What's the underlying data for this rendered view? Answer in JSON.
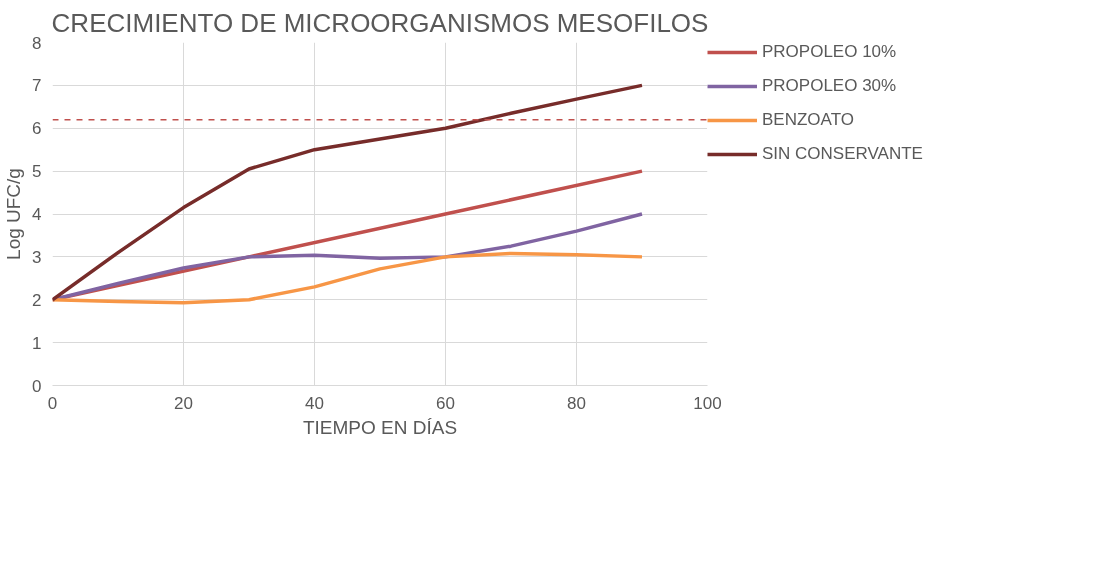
{
  "chart_data": {
    "type": "line",
    "title": "CRECIMIENTO DE MICROORGANISMOS MESOFILOS",
    "xlabel": "TIEMPO EN DÍAS",
    "ylabel": "Log UFC/g",
    "series": [
      {
        "name": "PROPOLEO 10%",
        "color": "#c0504d",
        "x": [
          0,
          30,
          60,
          90
        ],
        "values": [
          2,
          3,
          4,
          5
        ]
      },
      {
        "name": "PROPOLEO 30%",
        "color": "#8064a2",
        "x": [
          0,
          10,
          20,
          30,
          40,
          50,
          60,
          70,
          80,
          90
        ],
        "values": [
          2,
          2.38,
          2.74,
          3.0,
          3.04,
          2.97,
          3.0,
          3.25,
          3.6,
          4
        ]
      },
      {
        "name": "BENZOATO",
        "color": "#f79646",
        "x": [
          0,
          10,
          20,
          30,
          40,
          50,
          60,
          70,
          80,
          90
        ],
        "values": [
          2,
          1.96,
          1.93,
          2.0,
          2.3,
          2.72,
          3.0,
          3.08,
          3.05,
          3
        ]
      },
      {
        "name": "SIN CONSERVANTE",
        "color": "#772c2a",
        "x": [
          0,
          10,
          20,
          30,
          40,
          50,
          60,
          70,
          80,
          90
        ],
        "values": [
          2,
          3.1,
          4.15,
          5.05,
          5.5,
          5.75,
          6.0,
          6.35,
          6.68,
          7
        ]
      }
    ],
    "xlim": [
      0,
      100
    ],
    "xticks": [
      0,
      20,
      40,
      60,
      80,
      100
    ],
    "ylim": [
      0,
      8
    ],
    "yticks": [
      0,
      1,
      2,
      3,
      4,
      5,
      6,
      7,
      8
    ],
    "ref_lines": [
      {
        "axis": "y",
        "value": 6.2,
        "color": "#c0504d",
        "line_style": "dashed"
      }
    ],
    "grid": true,
    "legend": "right",
    "marker": "none",
    "line_style": "solid"
  }
}
